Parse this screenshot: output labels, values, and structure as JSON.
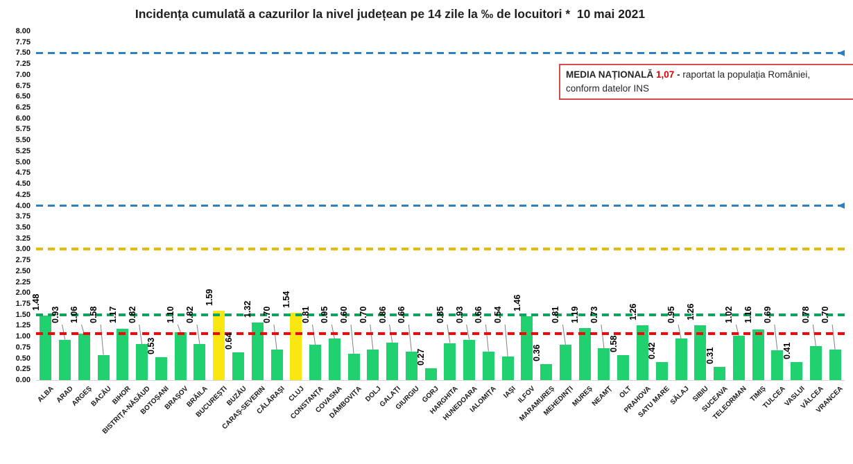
{
  "title": "Incidența cumulată a cazurilor la nivel județean pe 14 zile la ‰ de locuitori *  10 mai 2021",
  "annotation": {
    "label": "MEDIA NAȚIONALĂ",
    "value": "1,07",
    "dash": "-",
    "text_after": "raportat la populația României,",
    "text_line2": "conform datelor INS"
  },
  "chart_data": {
    "type": "bar",
    "title": "Incidența cumulată a cazurilor la nivel județean pe 14 zile la ‰ de locuitori *  10 mai 2021",
    "date": "10 mai 2021",
    "national_average": 1.07,
    "categories": [
      "ALBA",
      "ARAD",
      "ARGEȘ",
      "BACĂU",
      "BIHOR",
      "BISTRIȚA-NĂSĂUD",
      "BOTOȘANI",
      "BRAȘOV",
      "BRĂILA",
      "BUCUREȘTI",
      "BUZĂU",
      "CARAȘ-SEVERIN",
      "CĂLĂRAȘI",
      "CLUJ",
      "CONSTANȚA",
      "COVASNA",
      "DÂMBOVIȚA",
      "DOLJ",
      "GALAȚI",
      "GIURGIU",
      "GORJ",
      "HARGHITA",
      "HUNEDOARA",
      "IALOMIȚA",
      "IAȘI",
      "ILFOV",
      "MARAMUREȘ",
      "MEHEDINȚI",
      "MUREȘ",
      "NEAMȚ",
      "OLT",
      "PRAHOVA",
      "SATU MARE",
      "SĂLAJ",
      "SIBIU",
      "SUCEAVA",
      "TELEORMAN",
      "TIMIȘ",
      "TULCEA",
      "VASLUI",
      "VÂLCEA",
      "VRANCEA"
    ],
    "values": [
      1.48,
      0.93,
      1.06,
      0.58,
      1.17,
      0.82,
      0.53,
      1.1,
      0.82,
      1.59,
      0.64,
      1.32,
      0.7,
      1.54,
      0.81,
      0.95,
      0.6,
      0.7,
      0.86,
      0.66,
      0.27,
      0.85,
      0.93,
      0.66,
      0.54,
      1.46,
      0.36,
      0.81,
      1.19,
      0.73,
      0.58,
      1.26,
      0.42,
      0.95,
      1.26,
      0.31,
      1.02,
      1.16,
      0.69,
      0.41,
      0.78,
      0.7
    ],
    "highlight_indices": [
      9,
      13
    ],
    "label_near_indices": [
      6,
      10,
      20,
      26,
      30,
      32,
      35,
      39
    ],
    "ylim": [
      0,
      8
    ],
    "ytick_step": 0.25,
    "grid": false,
    "legend": false,
    "xlabel": "",
    "ylabel": "",
    "reference_lines": [
      {
        "value": 7.5,
        "color": "#2e7fc0",
        "style": "dashed",
        "arrow": true,
        "thickness": 3
      },
      {
        "value": 4.0,
        "color": "#2e7fc0",
        "style": "dashed",
        "arrow": true,
        "thickness": 3
      },
      {
        "value": 3.0,
        "color": "#e8b90a",
        "style": "dashed",
        "arrow": false,
        "thickness": 4
      },
      {
        "value": 1.5,
        "color": "#0fa35c",
        "style": "dashed",
        "arrow": false,
        "thickness": 4
      },
      {
        "value": 1.07,
        "color": "#fb0007",
        "style": "dashed",
        "arrow": false,
        "thickness": 4
      }
    ],
    "colors": {
      "bar": "#21d170",
      "bar_highlight": "#f8e711",
      "leader_line": "#808080",
      "baseline": "#d5d5d5",
      "text": "#111111"
    }
  }
}
